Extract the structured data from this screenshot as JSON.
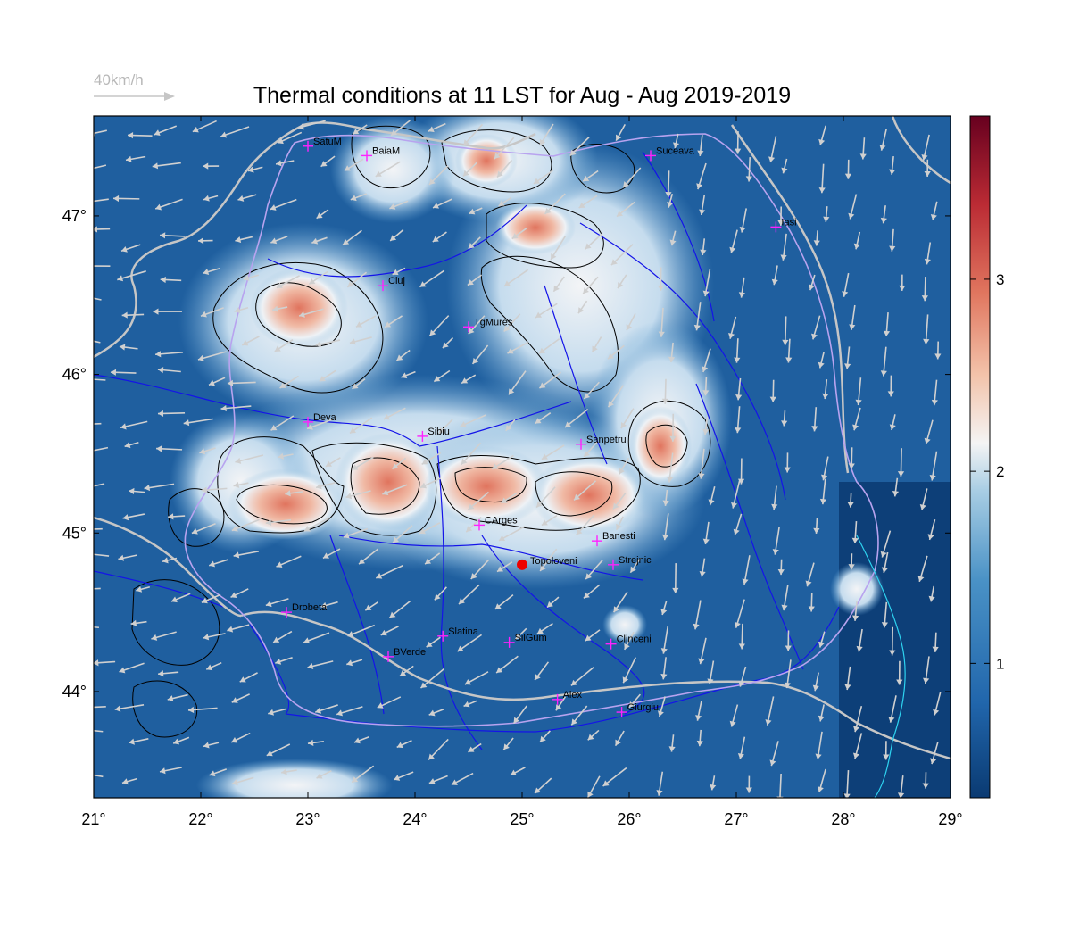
{
  "title": "Thermal conditions at 11 LST for Aug - Aug  2019-2019",
  "wind_scale_label": "40km/h",
  "colors": {
    "water_base": "#1f5f9f",
    "ocean_dark": "#0d3f78",
    "hot": "#e0745e",
    "warm": "#f2f3f5",
    "rivers": "#1414e8",
    "borders": "#c6c6c6",
    "coast": "#2ed3f0",
    "contours": "#000000",
    "city_marker": "#ff22ff",
    "highlight_point": "#ee0000",
    "wind_arrows": "#d0d0d0"
  },
  "axes": {
    "longitude_ticks": [
      "21°",
      "22°",
      "23°",
      "24°",
      "25°",
      "26°",
      "27°",
      "28°",
      "29°"
    ],
    "latitude_ticks": [
      "44°",
      "45°",
      "46°",
      "47°"
    ]
  },
  "colorbar": {
    "ticks": [
      "1",
      "2",
      "3"
    ],
    "min": 0.3,
    "max": 3.85,
    "colormap": "RdBu_r"
  },
  "cities": [
    {
      "name": "SatuM",
      "lon": 23.0,
      "lat": 47.44
    },
    {
      "name": "BaiaM",
      "lon": 23.55,
      "lat": 47.38
    },
    {
      "name": "Suceava",
      "lon": 26.2,
      "lat": 47.38
    },
    {
      "name": "Iasi",
      "lon": 27.37,
      "lat": 46.93
    },
    {
      "name": "Cluj",
      "lon": 23.7,
      "lat": 46.56
    },
    {
      "name": "TgMures",
      "lon": 24.5,
      "lat": 46.3
    },
    {
      "name": "Deva",
      "lon": 23.0,
      "lat": 45.7
    },
    {
      "name": "Sibiu",
      "lon": 24.07,
      "lat": 45.61
    },
    {
      "name": "Sanpetru",
      "lon": 25.55,
      "lat": 45.56
    },
    {
      "name": "CArges",
      "lon": 24.6,
      "lat": 45.05
    },
    {
      "name": "Banesti",
      "lon": 25.7,
      "lat": 44.95
    },
    {
      "name": "Strejnic",
      "lon": 25.85,
      "lat": 44.8
    },
    {
      "name": "Drobeta",
      "lon": 22.8,
      "lat": 44.5
    },
    {
      "name": "Slatina",
      "lon": 24.26,
      "lat": 44.35
    },
    {
      "name": "SilGum",
      "lon": 24.88,
      "lat": 44.31
    },
    {
      "name": "Clinceni",
      "lon": 25.83,
      "lat": 44.3
    },
    {
      "name": "BVerde",
      "lon": 23.75,
      "lat": 44.22
    },
    {
      "name": "Alex",
      "lon": 25.33,
      "lat": 43.95
    },
    {
      "name": "Giurgiu",
      "lon": 25.93,
      "lat": 43.87
    }
  ],
  "highlight": {
    "name": "Topoloveni",
    "lon": 25.0,
    "lat": 44.8
  }
}
